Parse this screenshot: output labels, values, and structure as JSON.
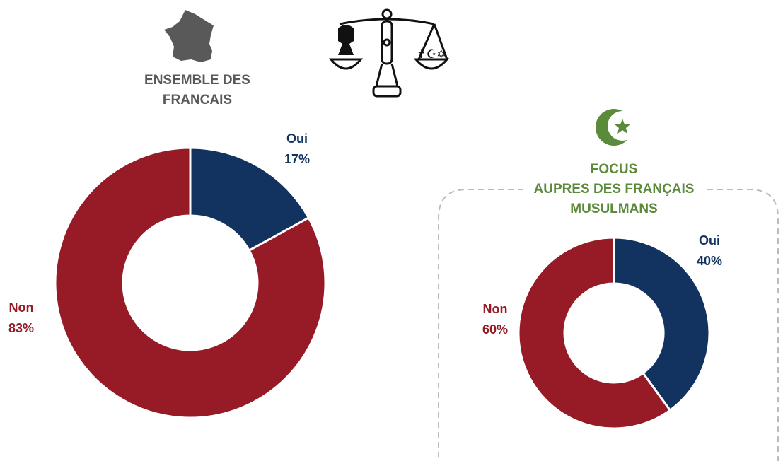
{
  "chart_data": [
    {
      "type": "pie",
      "title": "ENSEMBLE DES\nFRANCAIS",
      "title_color": "#595959",
      "categories": [
        "Oui",
        "Non"
      ],
      "values": [
        17,
        83
      ],
      "value_labels": [
        "17%",
        "83%"
      ],
      "colors": [
        "#12335f",
        "#961b27"
      ]
    },
    {
      "type": "pie",
      "title": "FOCUS\nAUPRES DES FRANÇAIS\nMUSULMANS",
      "title_color": "#5a8a3a",
      "categories": [
        "Oui",
        "Non"
      ],
      "values": [
        40,
        60
      ],
      "value_labels": [
        "40%",
        "60%"
      ],
      "colors": [
        "#12335f",
        "#961b27"
      ]
    }
  ]
}
